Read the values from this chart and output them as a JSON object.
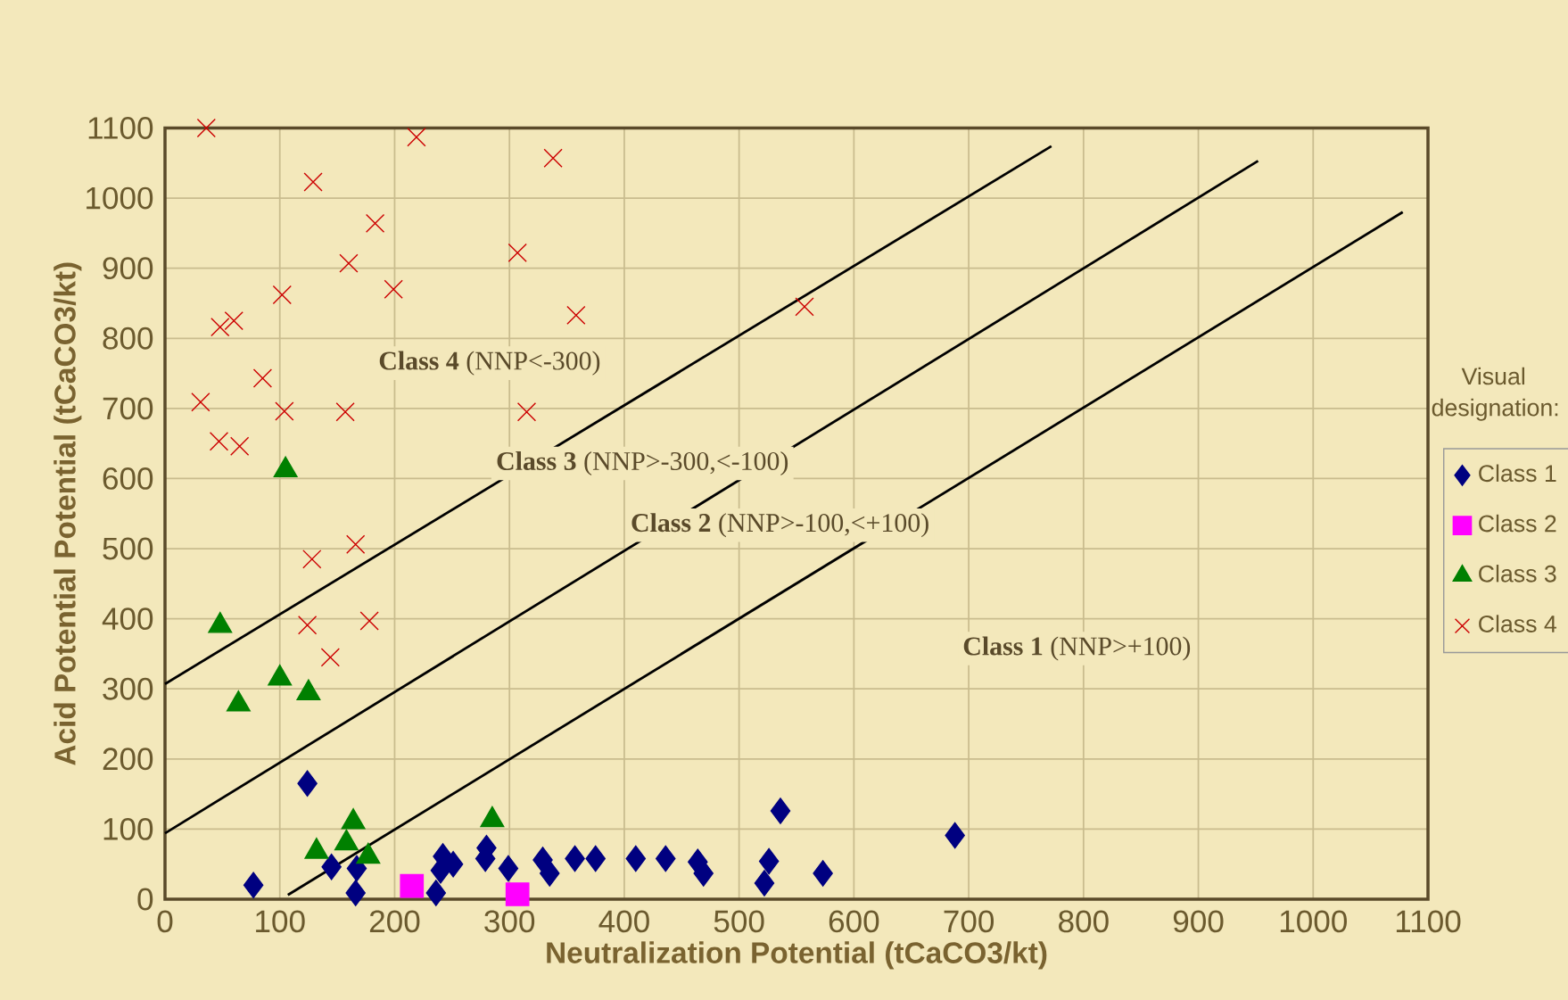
{
  "chart_data": {
    "type": "scatter",
    "xlabel": "Neutralization Potential (tCaCO3/kt)",
    "ylabel": "Acid Potential Potential (tCaCO3/kt)",
    "legend_title": "Visual designation:",
    "xlim": [
      0,
      1100
    ],
    "ylim": [
      0,
      1100
    ],
    "xticks": [
      0,
      100,
      200,
      300,
      400,
      500,
      600,
      700,
      800,
      900,
      1000,
      1100
    ],
    "yticks": [
      0,
      100,
      200,
      300,
      400,
      500,
      600,
      700,
      800,
      900,
      1000,
      1100
    ],
    "grid": true,
    "legend": "right",
    "annotations": [
      "**Class 4** (NNP<-300)",
      "**Class 3** (NNP>-300,<-100)",
      "**Class 2** (NNP>-100,<+100)",
      "**Class 1** (NNP>+100)"
    ],
    "series": [
      {
        "name": "Class 1",
        "color": "#000080",
        "marker": "diamond",
        "x": [
          77,
          124,
          145,
          166,
          167,
          236,
          240,
          242,
          251,
          280,
          279,
          299,
          329,
          335,
          357,
          375,
          410,
          436,
          464,
          469,
          522,
          526,
          536,
          573,
          688
        ],
        "values": [
          20,
          165,
          46,
          9,
          44,
          9,
          41,
          61,
          50,
          73,
          58,
          44,
          56,
          37,
          58,
          58,
          58,
          58,
          53,
          37,
          23,
          54,
          126,
          37,
          91
        ]
      },
      {
        "name": "Class 2",
        "color": "#ff00ff",
        "marker": "square",
        "x": [
          215,
          307
        ],
        "values": [
          19,
          7
        ]
      },
      {
        "name": "Class 3",
        "color": "#008000",
        "marker": "triangle",
        "x": [
          105,
          48,
          64,
          100,
          125,
          164,
          132,
          158,
          177,
          285
        ],
        "values": [
          612,
          390,
          278,
          315,
          294,
          110,
          68,
          80,
          61,
          113
        ]
      },
      {
        "name": "Class 4",
        "color": "#cc0000",
        "marker": "cross",
        "x": [
          36,
          219,
          338,
          129,
          183,
          160,
          307,
          199,
          102,
          48,
          60,
          358,
          557,
          85,
          31,
          104,
          157,
          315,
          47,
          65,
          128,
          166,
          124,
          178,
          144
        ],
        "values": [
          1100,
          1087,
          1057,
          1023,
          964,
          907,
          922,
          870,
          862,
          816,
          825,
          833,
          845,
          743,
          709,
          696,
          695,
          695,
          653,
          646,
          485,
          506,
          391,
          397,
          345
        ]
      },
      {
        "type": "line",
        "color": "#000000",
        "marker": "none",
        "x": [
          0,
          772
        ],
        "values": [
          307,
          1074
        ]
      },
      {
        "type": "line",
        "color": "#000000",
        "marker": "none",
        "x": [
          0,
          952
        ],
        "values": [
          94,
          1053
        ]
      },
      {
        "type": "line",
        "color": "#000000",
        "marker": "none",
        "x": [
          107,
          1078
        ],
        "values": [
          6,
          980
        ]
      }
    ]
  }
}
